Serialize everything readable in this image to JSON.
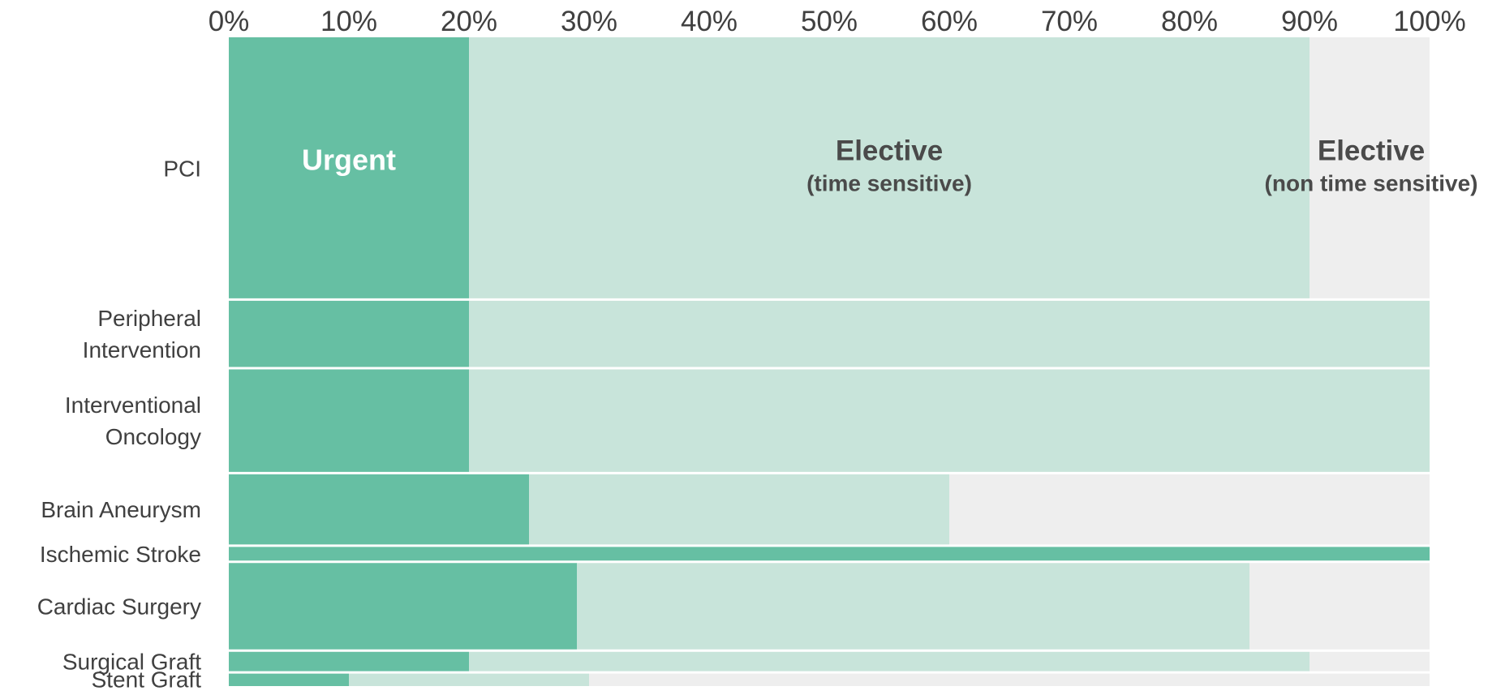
{
  "chart_data": {
    "type": "bar",
    "orientation": "horizontal-stacked-marimekko",
    "xlim": [
      0,
      100
    ],
    "x_ticks": [
      "0%",
      "10%",
      "20%",
      "30%",
      "40%",
      "50%",
      "60%",
      "70%",
      "80%",
      "90%",
      "100%"
    ],
    "x_tick_position": "top",
    "categories": [
      "PCI",
      "Peripheral Intervention",
      "Interventional Oncology",
      "Brain Aneurysm",
      "Ischemic Stroke",
      "Cardiac Surgery",
      "Surgical Graft",
      "Stent Graft"
    ],
    "category_labels": [
      [
        "PCI"
      ],
      [
        "Peripheral",
        "Intervention"
      ],
      [
        "Interventional",
        "Oncology"
      ],
      [
        "Brain Aneurysm"
      ],
      [
        "Ischemic Stroke"
      ],
      [
        "Cardiac Surgery"
      ],
      [
        "Surgical Graft"
      ],
      [
        "Stent Graft"
      ]
    ],
    "row_weights": [
      32.5,
      8.5,
      13,
      9,
      2,
      11,
      2.7,
      1.7
    ],
    "series": [
      {
        "name": "Urgent",
        "color": "#66bfa3",
        "values": [
          20,
          20,
          20,
          25,
          100,
          29,
          20,
          10
        ]
      },
      {
        "name": "Elective (time sensitive)",
        "color": "#c8e4da",
        "values": [
          70,
          80,
          80,
          35,
          0,
          56,
          70,
          20
        ]
      },
      {
        "name": "Elective (non time sensitive)",
        "color": "#eeeeee",
        "values": [
          10,
          0,
          0,
          40,
          0,
          15,
          10,
          70
        ]
      }
    ],
    "annotations": [
      {
        "row": 0,
        "series": 0,
        "lines": [
          "Urgent"
        ]
      },
      {
        "row": 0,
        "series": 1,
        "lines": [
          "Elective",
          "(time sensitive)"
        ]
      },
      {
        "row": 0,
        "series": 2,
        "lines": [
          "Elective",
          "(non time sensitive)"
        ]
      }
    ],
    "grid": false,
    "legend": "none"
  }
}
